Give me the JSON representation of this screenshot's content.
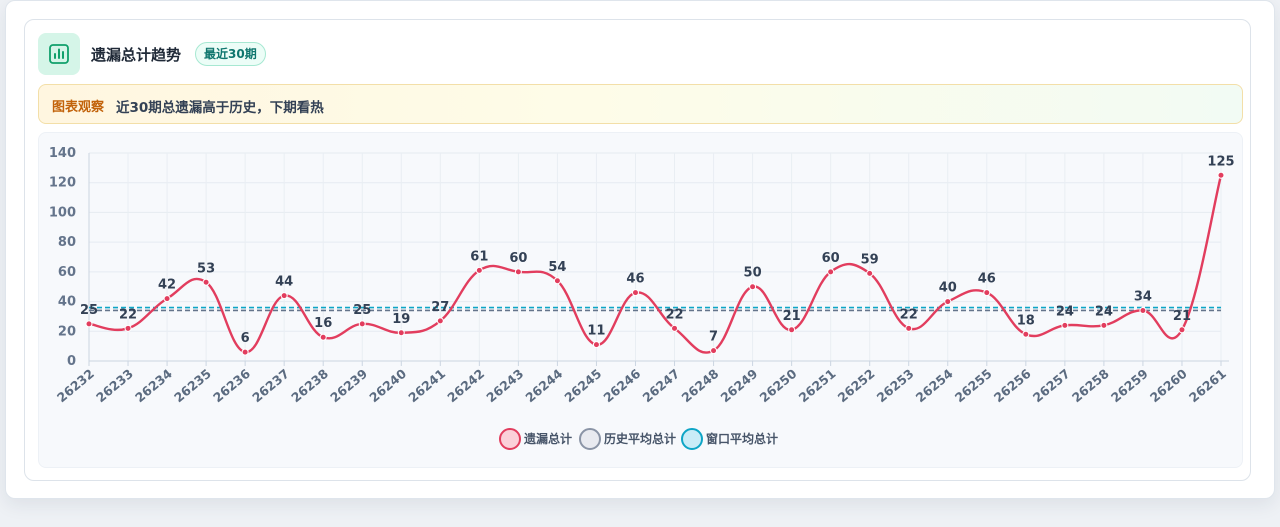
{
  "header": {
    "title": "遗漏总计趋势",
    "badge": "最近30期",
    "icon": "bar-chart-icon"
  },
  "notice": {
    "label": "图表观察",
    "text": "近30期总遗漏高于历史，下期看热"
  },
  "chart_data": {
    "type": "line",
    "title": "",
    "xlabel": "",
    "ylabel": "",
    "categories": [
      "26232",
      "26233",
      "26234",
      "26235",
      "26236",
      "26237",
      "26238",
      "26239",
      "26240",
      "26241",
      "26242",
      "26243",
      "26244",
      "26245",
      "26246",
      "26247",
      "26248",
      "26249",
      "26250",
      "26251",
      "26252",
      "26253",
      "26254",
      "26255",
      "26256",
      "26257",
      "26258",
      "26259",
      "26260",
      "26261"
    ],
    "ylim": [
      0,
      140
    ],
    "yticks": [
      0,
      20,
      40,
      60,
      80,
      100,
      120,
      140
    ],
    "grid": true,
    "legend_position": "bottom-center",
    "series": [
      {
        "name": "遗漏总计",
        "color": "#e23d5e",
        "smooth": true,
        "data_labels": true,
        "values": [
          25,
          22,
          42,
          53,
          6,
          44,
          16,
          25,
          19,
          27,
          61,
          60,
          54,
          11,
          46,
          22,
          7,
          50,
          21,
          60,
          59,
          22,
          40,
          46,
          18,
          24,
          24,
          34,
          21,
          125
        ]
      },
      {
        "name": "历史平均总计",
        "color": "#64748b",
        "dashed": true,
        "value": 34
      },
      {
        "name": "窗口平均总计",
        "color": "#0ea5c6",
        "dashed": true,
        "value": 36
      }
    ]
  }
}
